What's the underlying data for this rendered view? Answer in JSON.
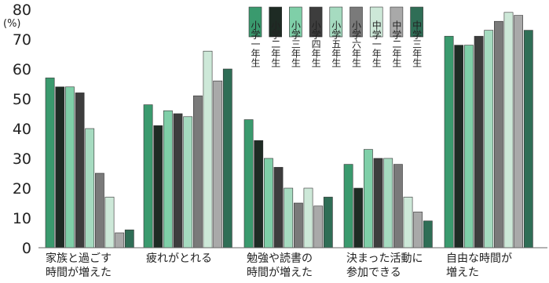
{
  "chart_data": {
    "type": "bar",
    "unit_label": "(%)",
    "ylim": [
      0,
      80
    ],
    "yticks": [
      0,
      10,
      20,
      30,
      40,
      50,
      60,
      70,
      80
    ],
    "grid": false,
    "legend_placement": "top-center",
    "categories": [
      [
        "家族と過ごす",
        "時間が増えた"
      ],
      [
        "疲れがとれる"
      ],
      [
        "勉強や読書の",
        "時間が増えた"
      ],
      [
        "決まった活動に",
        "参加できる"
      ],
      [
        "自由な時間が",
        "増えた"
      ]
    ],
    "series": [
      {
        "name": "小学一年生",
        "color": "#3a9a6e",
        "values": [
          57,
          48,
          43,
          28,
          71
        ]
      },
      {
        "name": "小学二年生",
        "color": "#1e2b24",
        "values": [
          54,
          41,
          36,
          20,
          68
        ]
      },
      {
        "name": "小学三年生",
        "color": "#7fcfa8",
        "values": [
          54,
          46,
          30,
          33,
          68
        ]
      },
      {
        "name": "小学四年生",
        "color": "#3d3d3d",
        "values": [
          52,
          45,
          27,
          30,
          71
        ]
      },
      {
        "name": "小学五年生",
        "color": "#a6dbc0",
        "values": [
          40,
          44,
          20,
          30,
          73
        ]
      },
      {
        "name": "小学六年生",
        "color": "#7a7a7a",
        "values": [
          25,
          51,
          15,
          28,
          76
        ]
      },
      {
        "name": "中学一年生",
        "color": "#cde8d8",
        "values": [
          17,
          66,
          20,
          17,
          79
        ]
      },
      {
        "name": "中学二年生",
        "color": "#a9a9a9",
        "values": [
          5,
          56,
          14,
          12,
          78
        ]
      },
      {
        "name": "中学三年生",
        "color": "#2f6e56",
        "values": [
          6,
          60,
          17,
          9,
          73
        ]
      }
    ]
  }
}
